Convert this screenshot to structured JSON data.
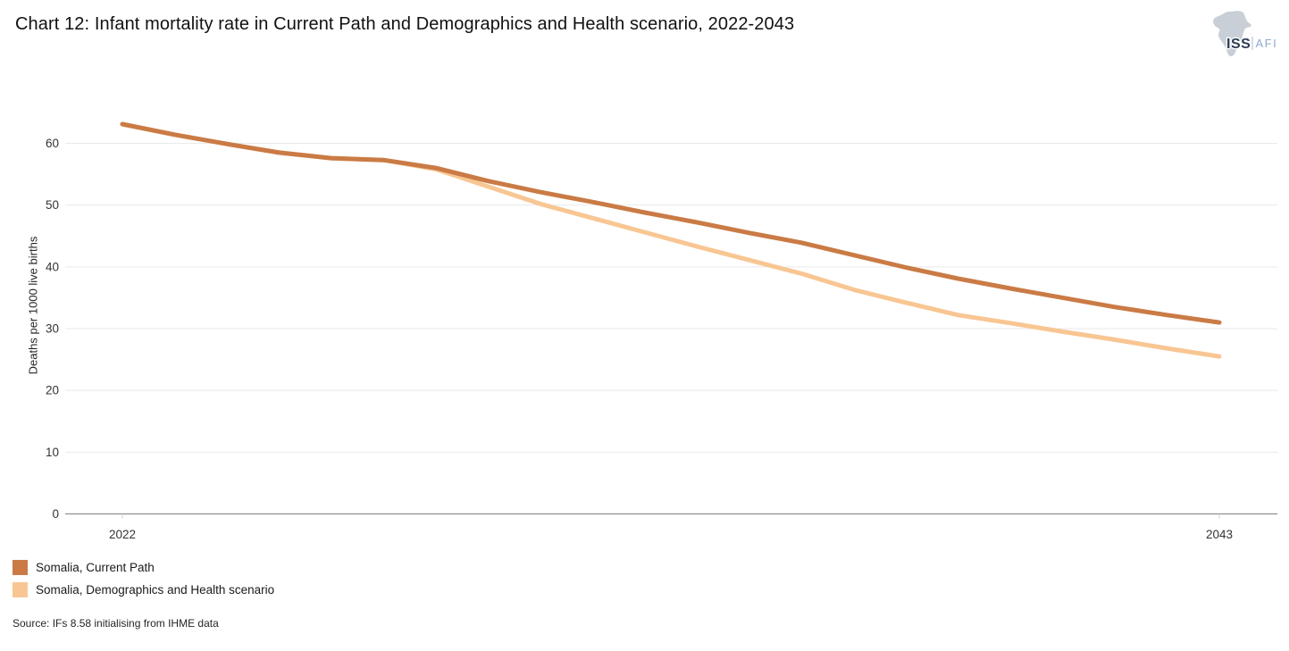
{
  "title": "Chart 12: Infant mortality rate in Current Path and Demographics and Health scenario, 2022-2043",
  "logo": {
    "iss_text": "ISS",
    "afi_text": "AFI",
    "iss_color": "#2B3A52",
    "afi_color": "#8EA9CB",
    "africa_color": "#C9CFD7",
    "separator_color": "#AEBFD6"
  },
  "source": "Source: IFs 8.58 initialising from IHME data",
  "chart_data": {
    "type": "line",
    "title": "Chart 12: Infant mortality rate in Current Path and Demographics and Health scenario, 2022-2043",
    "xlabel": "",
    "ylabel": "Deaths per 1000 live births",
    "x": [
      2022,
      2023,
      2024,
      2025,
      2026,
      2027,
      2028,
      2029,
      2030,
      2031,
      2032,
      2033,
      2034,
      2035,
      2036,
      2037,
      2038,
      2039,
      2040,
      2041,
      2042,
      2043
    ],
    "series": [
      {
        "name": "Somalia, Current Path",
        "color": "#CA7B45",
        "values": [
          63.1,
          61.4,
          59.9,
          58.5,
          57.6,
          57.3,
          56.0,
          53.9,
          52.1,
          50.5,
          48.8,
          47.2,
          45.5,
          43.9,
          41.9,
          39.9,
          38.1,
          36.5,
          35.0,
          33.5,
          32.2,
          31.0
        ]
      },
      {
        "name": "Somalia, Demographics and Health scenario",
        "color": "#F8C693",
        "values": [
          63.1,
          61.4,
          59.9,
          58.5,
          57.6,
          57.3,
          55.8,
          53.0,
          50.2,
          47.9,
          45.6,
          43.3,
          41.1,
          38.9,
          36.3,
          34.2,
          32.2,
          30.9,
          29.5,
          28.2,
          26.8,
          25.5
        ]
      }
    ],
    "ylim": [
      0,
      65
    ],
    "y_ticks": [
      0,
      10,
      20,
      30,
      40,
      50,
      60
    ],
    "x_tick_labels": [
      "2022",
      "2043"
    ],
    "grid": "horizontal",
    "grid_color": "#E9E9E9",
    "axis_color": "#808080",
    "tick_mark_color": "#D0D0D0",
    "legend_position": "bottom-left"
  }
}
